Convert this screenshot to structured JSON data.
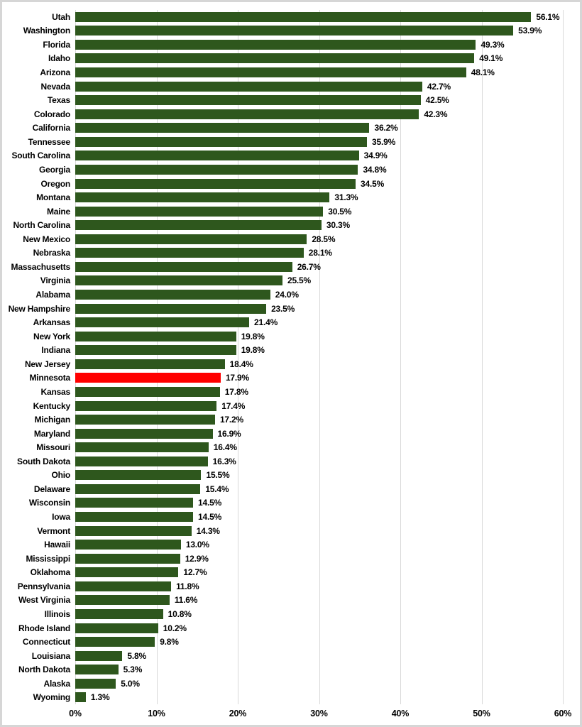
{
  "chart_data": {
    "type": "bar",
    "orientation": "horizontal",
    "title": "",
    "xlabel": "",
    "ylabel": "",
    "xlim": [
      0,
      60
    ],
    "x_ticks": [
      "0%",
      "10%",
      "20%",
      "30%",
      "40%",
      "50%",
      "60%"
    ],
    "grid": "vertical",
    "legend": "none",
    "highlight_category": "Minnesota",
    "categories": [
      "Utah",
      "Washington",
      "Florida",
      "Idaho",
      "Arizona",
      "Nevada",
      "Texas",
      "Colorado",
      "California",
      "Tennessee",
      "South Carolina",
      "Georgia",
      "Oregon",
      "Montana",
      "Maine",
      "North Carolina",
      "New Mexico",
      "Nebraska",
      "Massachusetts",
      "Virginia",
      "Alabama",
      "New Hampshire",
      "Arkansas",
      "New York",
      "Indiana",
      "New Jersey",
      "Minnesota",
      "Kansas",
      "Kentucky",
      "Michigan",
      "Maryland",
      "Missouri",
      "South Dakota",
      "Ohio",
      "Delaware",
      "Wisconsin",
      "Iowa",
      "Vermont",
      "Hawaii",
      "Mississippi",
      "Oklahoma",
      "Pennsylvania",
      "West Virginia",
      "Illinois",
      "Rhode Island",
      "Connecticut",
      "Louisiana",
      "North Dakota",
      "Alaska",
      "Wyoming"
    ],
    "values": [
      56.1,
      53.9,
      49.3,
      49.1,
      48.1,
      42.7,
      42.5,
      42.3,
      36.2,
      35.9,
      34.9,
      34.8,
      34.5,
      31.3,
      30.5,
      30.3,
      28.5,
      28.1,
      26.7,
      25.5,
      24.0,
      23.5,
      21.4,
      19.8,
      19.8,
      18.4,
      17.9,
      17.8,
      17.4,
      17.2,
      16.9,
      16.4,
      16.3,
      15.5,
      15.4,
      14.5,
      14.5,
      14.3,
      13.0,
      12.9,
      12.7,
      11.8,
      11.6,
      10.8,
      10.2,
      9.8,
      5.8,
      5.3,
      5.0,
      1.3
    ],
    "value_labels": [
      "56.1%",
      "53.9%",
      "49.3%",
      "49.1%",
      "48.1%",
      "42.7%",
      "42.5%",
      "42.3%",
      "36.2%",
      "35.9%",
      "34.9%",
      "34.8%",
      "34.5%",
      "31.3%",
      "30.5%",
      "30.3%",
      "28.5%",
      "28.1%",
      "26.7%",
      "25.5%",
      "24.0%",
      "23.5%",
      "21.4%",
      "19.8%",
      "19.8%",
      "18.4%",
      "17.9%",
      "17.8%",
      "17.4%",
      "17.2%",
      "16.9%",
      "16.4%",
      "16.3%",
      "15.5%",
      "15.4%",
      "14.5%",
      "14.5%",
      "14.3%",
      "13.0%",
      "12.9%",
      "12.7%",
      "11.8%",
      "11.6%",
      "10.8%",
      "10.2%",
      "9.8%",
      "5.8%",
      "5.3%",
      "5.0%",
      "1.3%"
    ],
    "colors": {
      "bar": "#2E571D",
      "highlight": "#FF0000",
      "gridline": "#D9D9D9",
      "text": "#000000",
      "background": "#FFFFFF",
      "frame_border": "#D6D6D6"
    }
  }
}
